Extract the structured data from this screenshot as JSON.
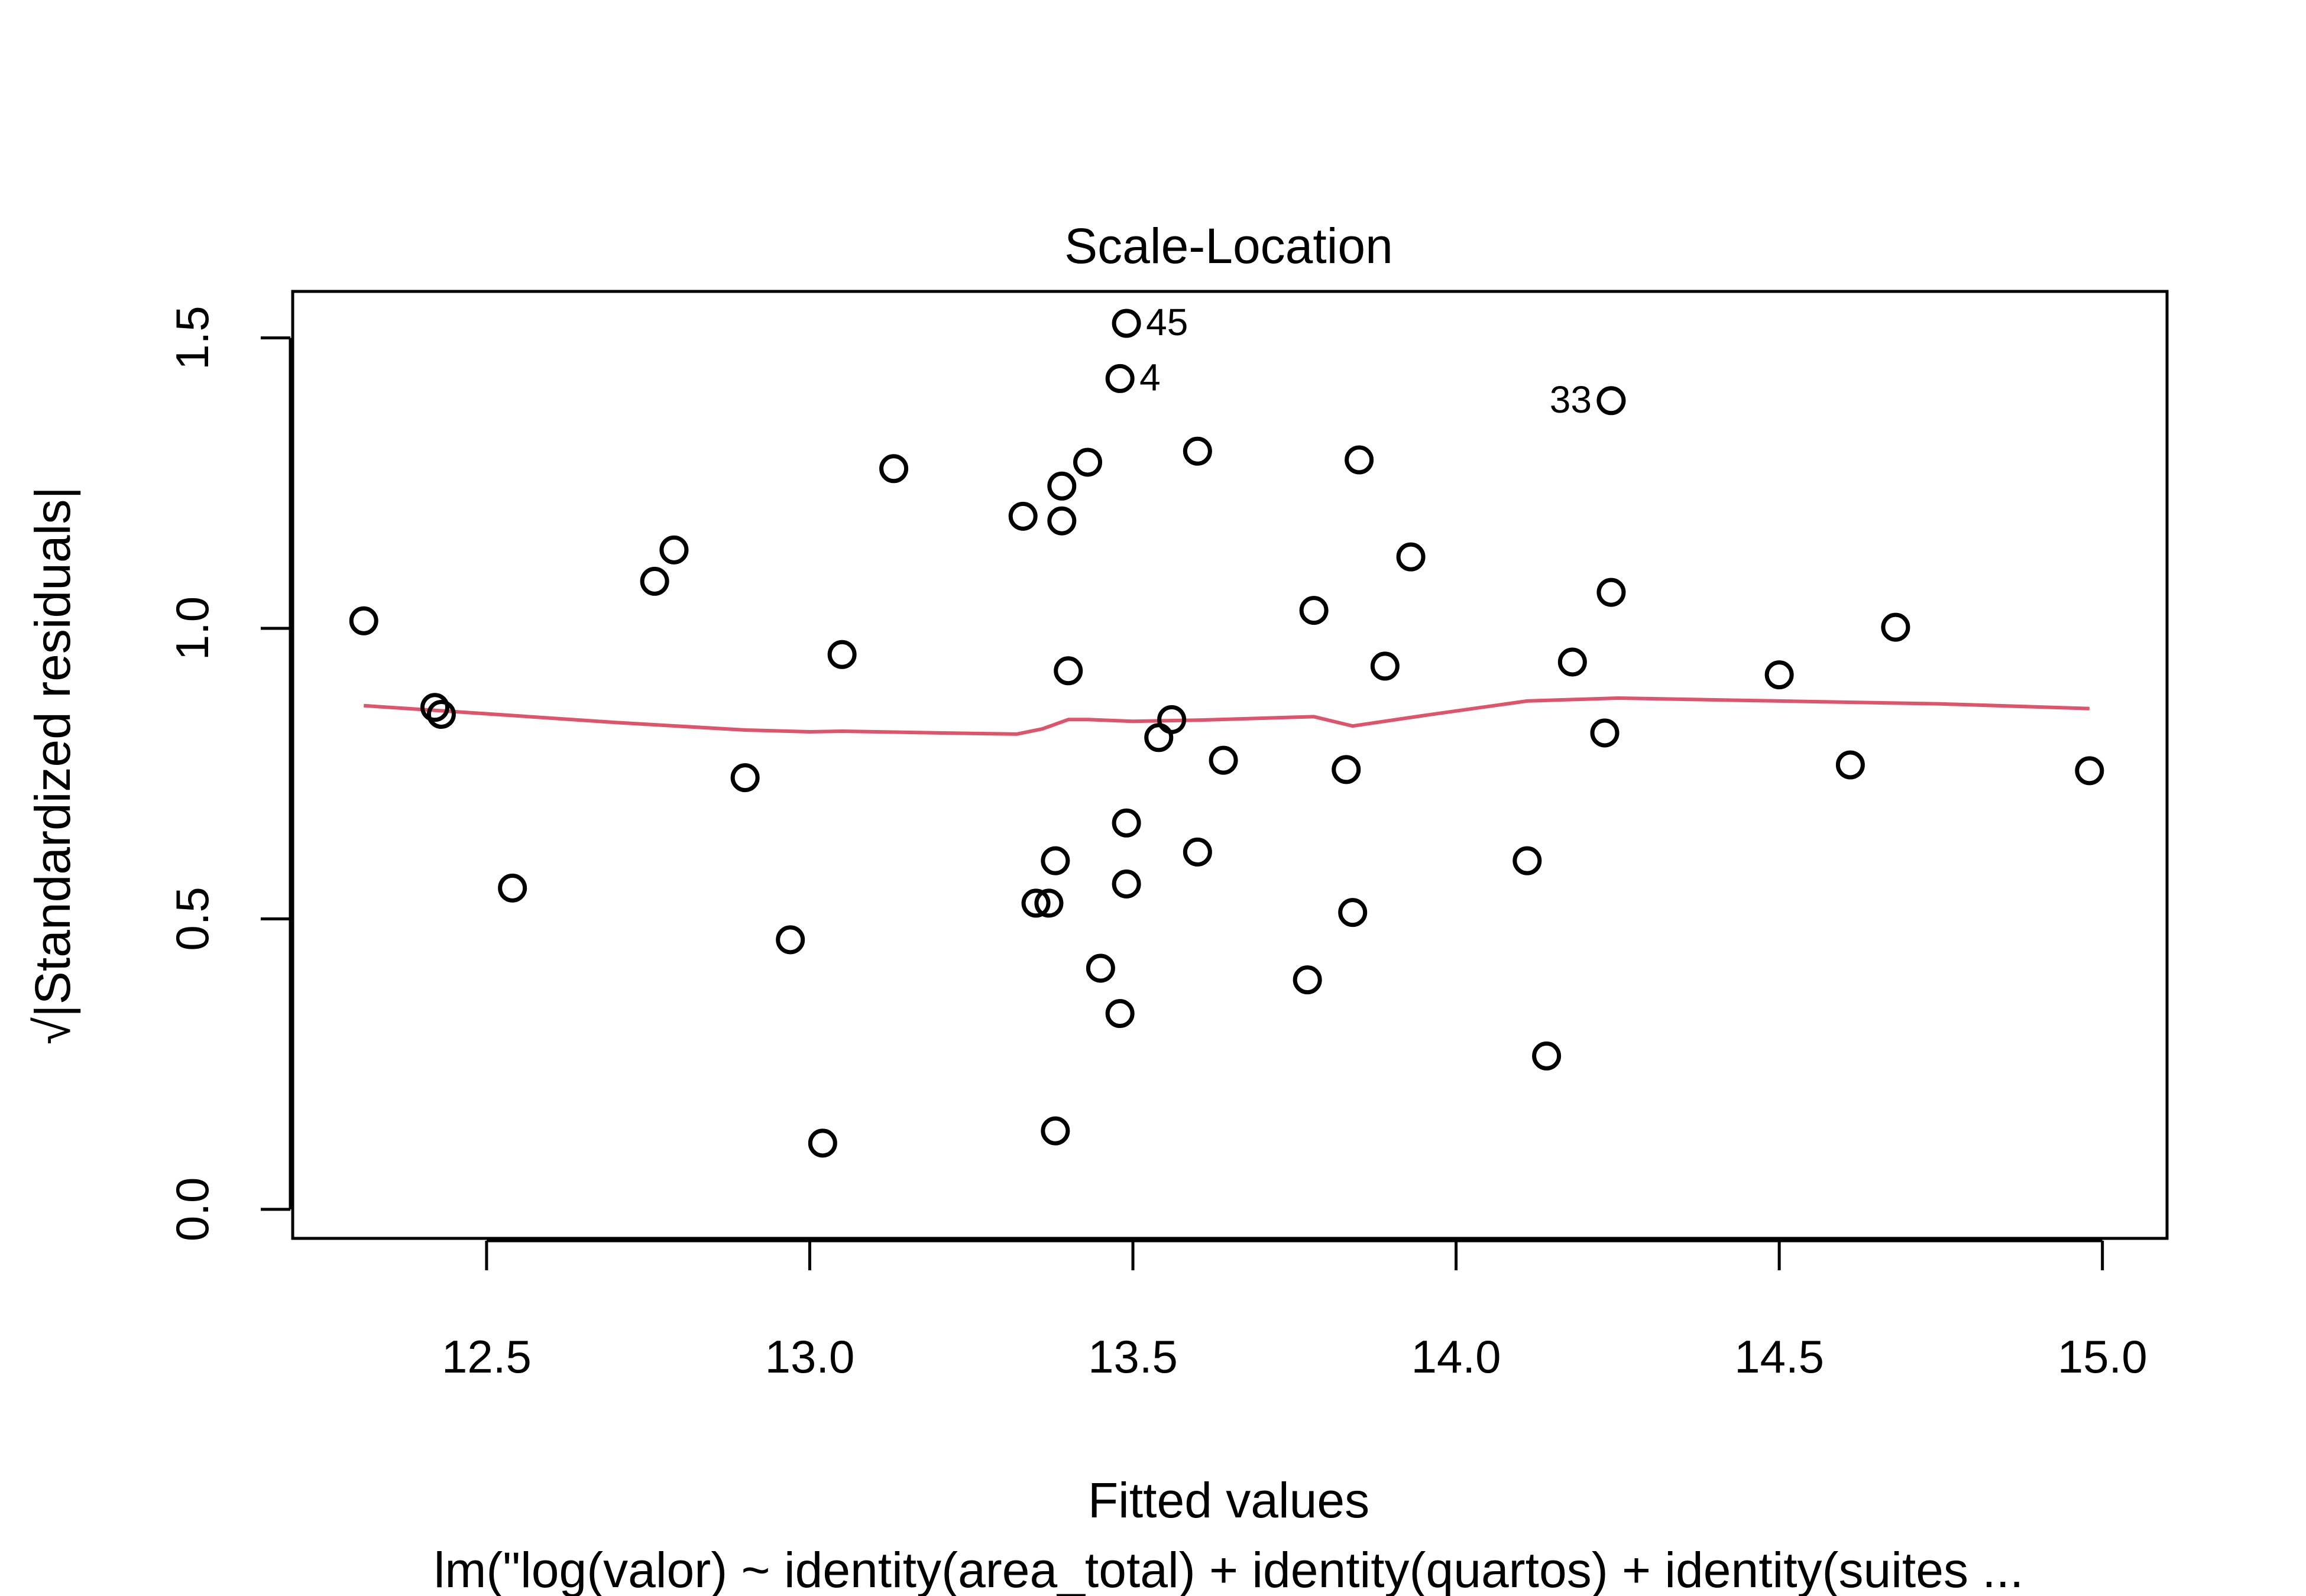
{
  "chart_data": {
    "type": "scatter",
    "title": "Scale-Location",
    "xlabel": "Fitted values",
    "ylabel": "√|Standardized residuals|",
    "subtitle": "lm(\"log(valor) ~ identity(area_total) + identity(quartos) + identity(suites ...",
    "xlim": [
      12.2,
      15.1
    ],
    "ylim": [
      -0.05,
      1.58
    ],
    "x_ticks": [
      12.5,
      13.0,
      13.5,
      14.0,
      14.5,
      15.0
    ],
    "x_tick_labels": [
      "12.5",
      "13.0",
      "13.5",
      "14.0",
      "14.5",
      "15.0"
    ],
    "y_ticks": [
      0.0,
      0.5,
      1.0,
      1.5
    ],
    "y_tick_labels": [
      "0.0",
      "0.5",
      "1.0",
      "1.5"
    ],
    "grid": false,
    "colors": {
      "points": "#000000",
      "smooth": "#DF536B"
    },
    "points": [
      {
        "x": 12.31,
        "y": 1.013
      },
      {
        "x": 12.42,
        "y": 0.864
      },
      {
        "x": 12.43,
        "y": 0.852
      },
      {
        "x": 12.54,
        "y": 0.553
      },
      {
        "x": 12.76,
        "y": 1.081
      },
      {
        "x": 12.79,
        "y": 1.135
      },
      {
        "x": 12.9,
        "y": 0.743
      },
      {
        "x": 12.97,
        "y": 0.464
      },
      {
        "x": 13.02,
        "y": 0.114
      },
      {
        "x": 13.05,
        "y": 0.955
      },
      {
        "x": 13.13,
        "y": 1.275
      },
      {
        "x": 13.33,
        "y": 1.193
      },
      {
        "x": 13.35,
        "y": 0.527
      },
      {
        "x": 13.37,
        "y": 0.527
      },
      {
        "x": 13.38,
        "y": 0.6
      },
      {
        "x": 13.38,
        "y": 0.135
      },
      {
        "x": 13.39,
        "y": 1.245
      },
      {
        "x": 13.39,
        "y": 1.185
      },
      {
        "x": 13.4,
        "y": 0.927
      },
      {
        "x": 13.43,
        "y": 1.286
      },
      {
        "x": 13.45,
        "y": 0.415
      },
      {
        "x": 13.48,
        "y": 0.337
      },
      {
        "x": 13.48,
        "y": 1.43,
        "label": "4"
      },
      {
        "x": 13.49,
        "y": 1.525,
        "label": "45"
      },
      {
        "x": 13.49,
        "y": 0.665
      },
      {
        "x": 13.49,
        "y": 0.56
      },
      {
        "x": 13.54,
        "y": 0.812
      },
      {
        "x": 13.56,
        "y": 0.843
      },
      {
        "x": 13.6,
        "y": 1.305
      },
      {
        "x": 13.6,
        "y": 0.615
      },
      {
        "x": 13.64,
        "y": 0.773
      },
      {
        "x": 13.77,
        "y": 0.395
      },
      {
        "x": 13.78,
        "y": 1.031
      },
      {
        "x": 13.83,
        "y": 0.757
      },
      {
        "x": 13.84,
        "y": 0.511
      },
      {
        "x": 13.85,
        "y": 1.29
      },
      {
        "x": 13.89,
        "y": 0.935
      },
      {
        "x": 13.93,
        "y": 1.123
      },
      {
        "x": 14.11,
        "y": 0.6
      },
      {
        "x": 14.14,
        "y": 0.264
      },
      {
        "x": 14.18,
        "y": 0.942
      },
      {
        "x": 14.23,
        "y": 0.82
      },
      {
        "x": 14.24,
        "y": 1.062
      },
      {
        "x": 14.24,
        "y": 1.392,
        "label": "33"
      },
      {
        "x": 14.5,
        "y": 0.92
      },
      {
        "x": 14.61,
        "y": 0.765
      },
      {
        "x": 14.68,
        "y": 1.002
      },
      {
        "x": 14.98,
        "y": 0.755
      }
    ],
    "smooth_line": {
      "x": [
        12.31,
        12.5,
        12.7,
        12.9,
        13.0,
        13.05,
        13.2,
        13.32,
        13.36,
        13.4,
        13.43,
        13.5,
        13.6,
        13.78,
        13.84,
        13.95,
        14.11,
        14.25,
        14.5,
        14.75,
        14.98
      ],
      "y": [
        0.867,
        0.853,
        0.838,
        0.825,
        0.822,
        0.823,
        0.82,
        0.818,
        0.827,
        0.843,
        0.843,
        0.84,
        0.842,
        0.848,
        0.832,
        0.85,
        0.875,
        0.88,
        0.875,
        0.87,
        0.862
      ]
    }
  }
}
